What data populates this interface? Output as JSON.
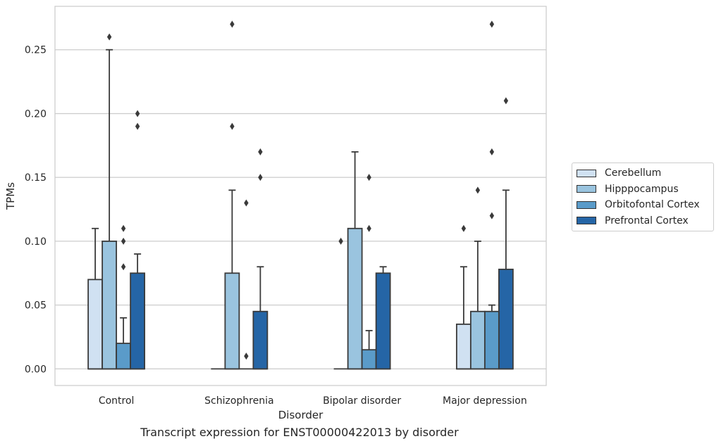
{
  "caption": "Transcript expression for ENST00000422013 by disorder",
  "chart_data": {
    "type": "box",
    "xlabel": "Disorder",
    "ylabel": "TPMs",
    "ylim": [
      -0.013,
      0.284
    ],
    "yticks": [
      "0.00",
      "0.05",
      "0.10",
      "0.15",
      "0.20",
      "0.25"
    ],
    "grid": "horizontal",
    "legend_placement": "right",
    "categories": [
      "Control",
      "Schizophrenia",
      "Bipolar disorder",
      "Major depression"
    ],
    "series": [
      {
        "name": "Cerebellum",
        "color": "#d0e1f2",
        "boxes": [
          {
            "q1": 0.0,
            "median": 0.0,
            "q3": 0.07,
            "whisker_low": 0.0,
            "whisker_high": 0.11,
            "outliers": []
          },
          {
            "q1": 0.0,
            "median": 0.0,
            "q3": 0.0,
            "whisker_low": 0.0,
            "whisker_high": 0.0,
            "outliers": []
          },
          {
            "q1": 0.0,
            "median": 0.0,
            "q3": 0.0,
            "whisker_low": 0.0,
            "whisker_high": 0.0,
            "outliers": [
              0.1
            ]
          },
          {
            "q1": 0.0,
            "median": 0.0,
            "q3": 0.035,
            "whisker_low": 0.0,
            "whisker_high": 0.08,
            "outliers": [
              0.11
            ]
          }
        ]
      },
      {
        "name": "Hipppocampus",
        "color": "#9ac4df",
        "boxes": [
          {
            "q1": 0.0,
            "median": 0.0,
            "q3": 0.1,
            "whisker_low": 0.0,
            "whisker_high": 0.25,
            "outliers": [
              0.26
            ]
          },
          {
            "q1": 0.0,
            "median": 0.0,
            "q3": 0.075,
            "whisker_low": 0.0,
            "whisker_high": 0.14,
            "outliers": [
              0.19,
              0.27
            ]
          },
          {
            "q1": 0.0,
            "median": 0.0,
            "q3": 0.11,
            "whisker_low": 0.0,
            "whisker_high": 0.17,
            "outliers": []
          },
          {
            "q1": 0.0,
            "median": 0.0,
            "q3": 0.045,
            "whisker_low": 0.0,
            "whisker_high": 0.1,
            "outliers": [
              0.14
            ]
          }
        ]
      },
      {
        "name": "Orbitofontal Cortex",
        "color": "#5a9bc9",
        "boxes": [
          {
            "q1": 0.0,
            "median": 0.0,
            "q3": 0.02,
            "whisker_low": 0.0,
            "whisker_high": 0.04,
            "outliers": [
              0.08,
              0.1,
              0.11
            ]
          },
          {
            "q1": 0.0,
            "median": 0.0,
            "q3": 0.0,
            "whisker_low": 0.0,
            "whisker_high": 0.0,
            "outliers": [
              0.01,
              0.13
            ]
          },
          {
            "q1": 0.0,
            "median": 0.0,
            "q3": 0.015,
            "whisker_low": 0.0,
            "whisker_high": 0.03,
            "outliers": [
              0.11,
              0.15
            ]
          },
          {
            "q1": 0.0,
            "median": 0.0,
            "q3": 0.045,
            "whisker_low": 0.0,
            "whisker_high": 0.05,
            "outliers": [
              0.12,
              0.17,
              0.27
            ]
          }
        ]
      },
      {
        "name": "Prefrontal Cortex",
        "color": "#2565a6",
        "boxes": [
          {
            "q1": 0.0,
            "median": 0.0,
            "q3": 0.075,
            "whisker_low": 0.0,
            "whisker_high": 0.09,
            "outliers": [
              0.19,
              0.2
            ]
          },
          {
            "q1": 0.0,
            "median": 0.0,
            "q3": 0.045,
            "whisker_low": 0.0,
            "whisker_high": 0.08,
            "outliers": [
              0.15,
              0.17
            ]
          },
          {
            "q1": 0.0,
            "median": 0.0,
            "q3": 0.075,
            "whisker_low": 0.0,
            "whisker_high": 0.08,
            "outliers": []
          },
          {
            "q1": 0.0,
            "median": 0.0,
            "q3": 0.078,
            "whisker_low": 0.0,
            "whisker_high": 0.14,
            "outliers": [
              0.21
            ]
          }
        ]
      }
    ]
  }
}
